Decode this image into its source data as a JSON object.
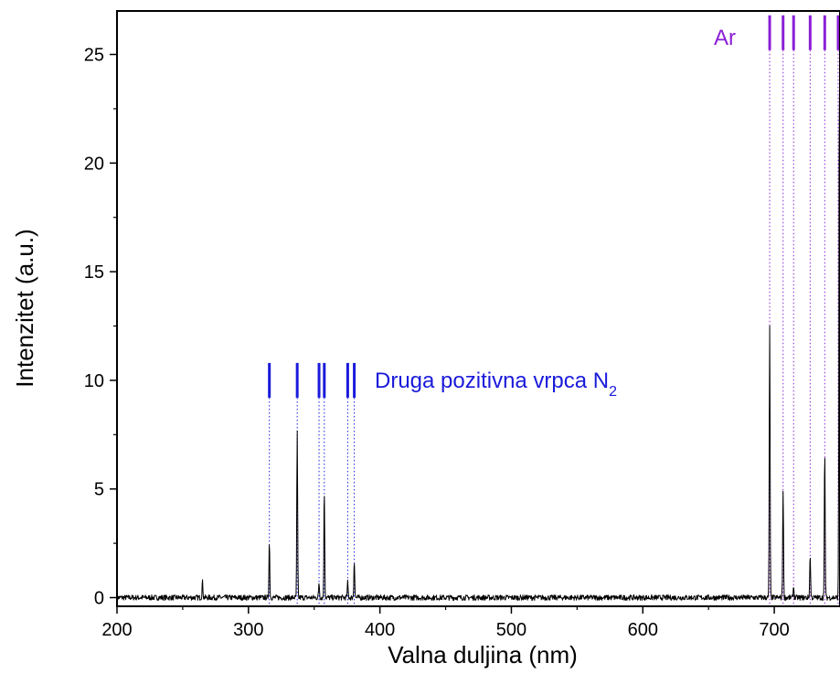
{
  "chart_data": {
    "type": "line",
    "xlabel": "Valna duljina (nm)",
    "ylabel": "Intenzitet (a.u.)",
    "xlim": [
      200,
      750
    ],
    "ylim": [
      -0.4,
      27
    ],
    "x_ticks": [
      200,
      300,
      400,
      500,
      600,
      700
    ],
    "y_ticks": [
      0,
      5,
      10,
      15,
      20,
      25
    ],
    "grid": false,
    "legend": "none",
    "series": [
      {
        "color": "#000000",
        "baseline": 0,
        "peaks": [
          {
            "x": 265,
            "y": 0.75
          },
          {
            "x": 315.9,
            "y": 2.55
          },
          {
            "x": 337.1,
            "y": 7.6
          },
          {
            "x": 353.7,
            "y": 0.7
          },
          {
            "x": 357.7,
            "y": 4.95
          },
          {
            "x": 375.5,
            "y": 0.7
          },
          {
            "x": 380.5,
            "y": 1.75
          },
          {
            "x": 696.5,
            "y": 12.45
          },
          {
            "x": 706.7,
            "y": 5.0
          },
          {
            "x": 714.7,
            "y": 0.5
          },
          {
            "x": 727.3,
            "y": 2.0
          },
          {
            "x": 738.4,
            "y": 6.7
          },
          {
            "x": 749.5,
            "y": 24.3
          }
        ]
      }
    ],
    "annotations": [
      {
        "label": "Druga pozitivna vrpca N",
        "subscript": "2",
        "color": "#1a1adb",
        "lines": [
          315.9,
          337.1,
          353.7,
          357.7,
          375.5,
          380.5
        ],
        "marker_range": [
          9.2,
          10.8
        ]
      },
      {
        "label": "Ar",
        "color": "#8b1fd6",
        "lines": [
          696.5,
          706.7,
          714.7,
          727.3,
          738.4,
          750.4
        ],
        "marker_range": [
          25.2,
          26.8
        ]
      }
    ]
  }
}
